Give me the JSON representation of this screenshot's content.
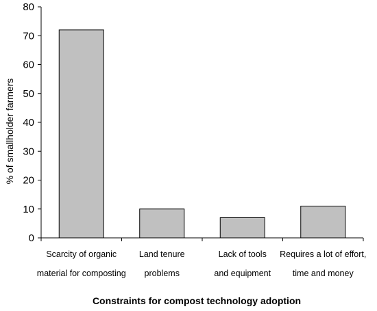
{
  "chart_data": {
    "type": "bar",
    "categories": [
      [
        "Scarcity of organic",
        "material for composting"
      ],
      [
        "Land tenure",
        "problems"
      ],
      [
        "Lack of tools",
        "and equipment"
      ],
      [
        "Requires a lot of effort,",
        "time and money"
      ]
    ],
    "values": [
      72,
      10,
      7,
      11
    ],
    "xlabel": "Constraints for compost technology adoption",
    "ylabel": "% of smallholder farmers",
    "ylim": [
      0,
      80
    ],
    "yticks": [
      "0",
      "10",
      "20",
      "30",
      "40",
      "50",
      "60",
      "70",
      "80"
    ],
    "grid": false,
    "bar_color": "#c0c0c0",
    "bar_edge_color": "#000000"
  }
}
